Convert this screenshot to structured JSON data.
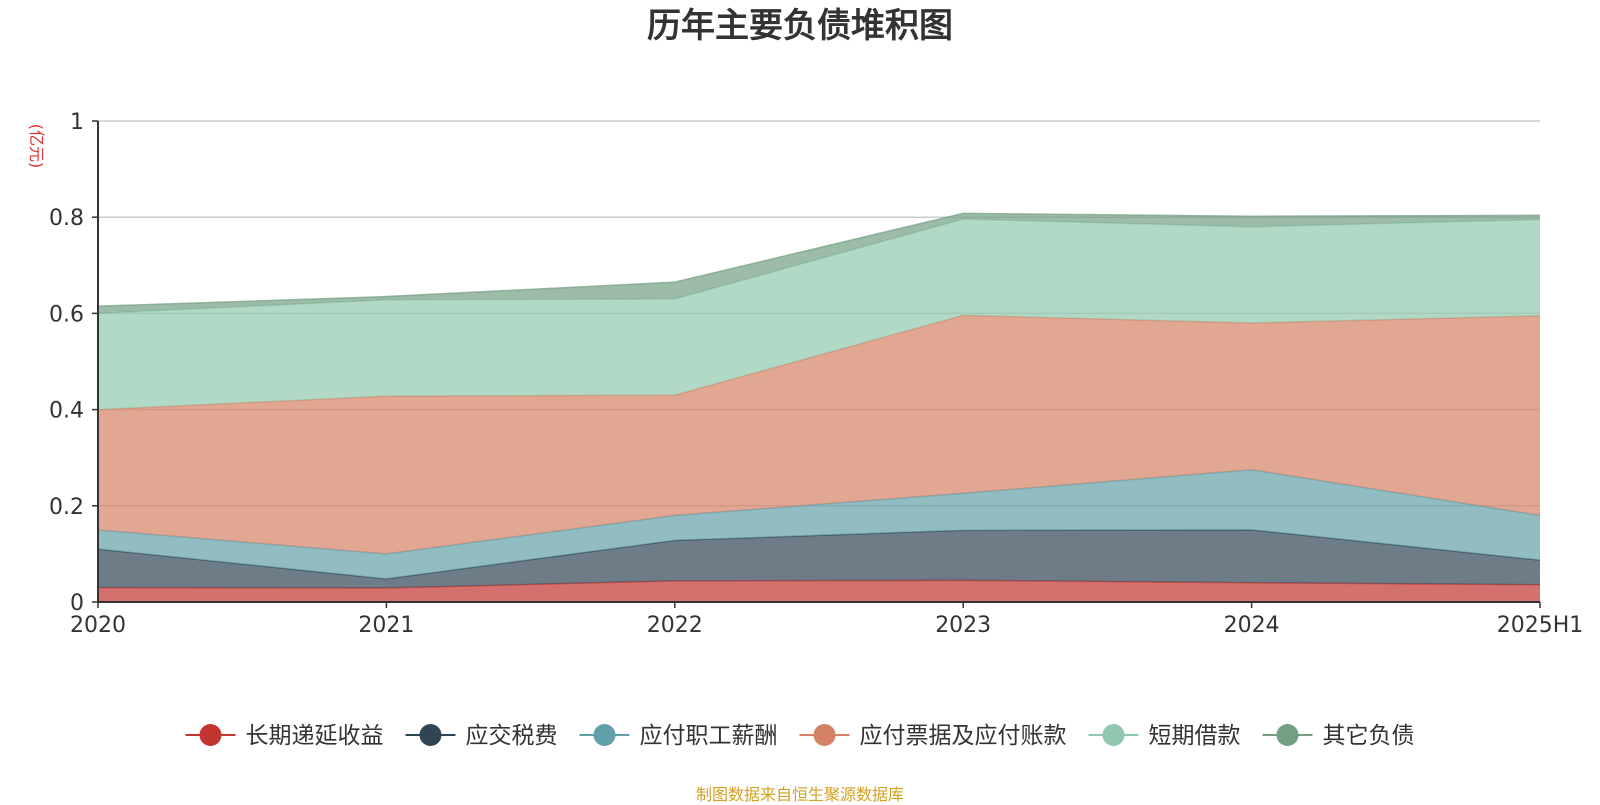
{
  "chart_data": {
    "type": "area",
    "title": "历年主要负债堆积图",
    "unit": "(亿元)",
    "stacked": true,
    "categories": [
      "2020",
      "2021",
      "2022",
      "2023",
      "2024",
      "2025H1"
    ],
    "ylim": [
      0,
      1
    ],
    "yticks": [
      "0",
      "0.2",
      "0.4",
      "0.6",
      "0.8",
      "1"
    ],
    "grid": true,
    "legend_position": "bottom",
    "series": [
      {
        "name": "长期递延收益",
        "color": "#c23531",
        "values": [
          0.03,
          0.029,
          0.044,
          0.045,
          0.04,
          0.036
        ]
      },
      {
        "name": "应交税费",
        "color": "#2f4554",
        "values": [
          0.08,
          0.019,
          0.084,
          0.104,
          0.11,
          0.051
        ]
      },
      {
        "name": "应付职工薪酬",
        "color": "#61a0a8",
        "values": [
          0.04,
          0.052,
          0.052,
          0.077,
          0.125,
          0.093
        ]
      },
      {
        "name": "应付票据及应付账款",
        "color": "#d48265",
        "values": [
          0.25,
          0.328,
          0.25,
          0.37,
          0.305,
          0.415
        ]
      },
      {
        "name": "短期借款",
        "color": "#91c7ae",
        "values": [
          0.2,
          0.2,
          0.2,
          0.2,
          0.2,
          0.2
        ]
      },
      {
        "name": "其它负债",
        "color": "#749f83",
        "values": [
          0.015,
          0.007,
          0.035,
          0.012,
          0.022,
          0.009
        ]
      }
    ],
    "source": "制图数据来自恒生聚源数据库"
  }
}
